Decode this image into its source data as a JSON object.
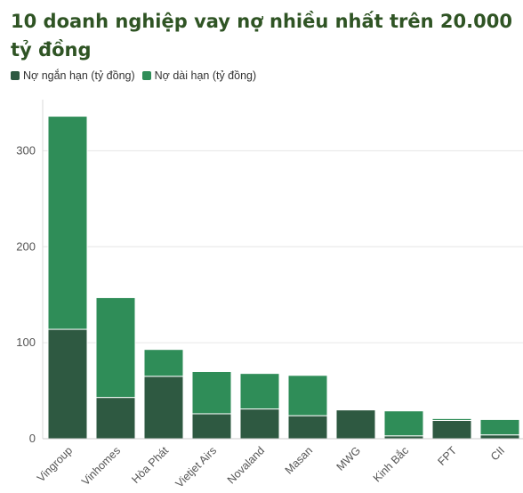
{
  "chart_data": {
    "type": "bar",
    "stacked": true,
    "title": "10 doanh nghiệp vay nợ nhiều nhất trên 20.000 tỷ đồng",
    "xlabel": "",
    "ylabel": "",
    "categories": [
      "Vingroup",
      "Vinhomes",
      "Hòa Phát",
      "Vietjet Airs",
      "Novaland",
      "Masan",
      "MWG",
      "Kinh Bắc",
      "FPT",
      "CII"
    ],
    "series": [
      {
        "name": "Nợ ngắn hạn (tỷ đồng)",
        "color": "#2e5941",
        "values": [
          114,
          43,
          65,
          26,
          31,
          24,
          30,
          3,
          19,
          4
        ]
      },
      {
        "name": "Nợ dài hạn (tỷ đồng)",
        "color": "#2f8d58",
        "values": [
          222,
          104,
          28,
          44,
          37,
          42,
          0,
          26,
          2,
          16
        ]
      }
    ],
    "ylim": [
      0,
      350
    ],
    "yticks": [
      0,
      100,
      200,
      300
    ],
    "grid": true,
    "legend_position": "top-left"
  }
}
